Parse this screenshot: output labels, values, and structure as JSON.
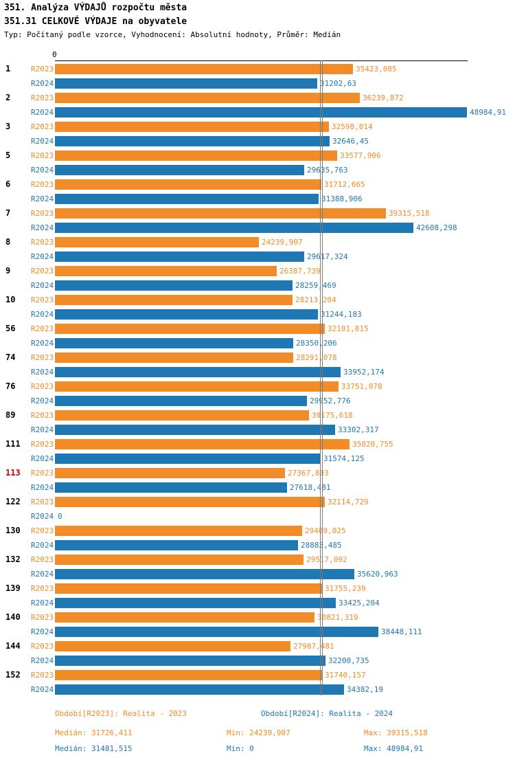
{
  "title": "351. Analýza VÝDAJŮ rozpočtu města",
  "subtitle": "351.31 CELKOVÉ VÝDAJE na obyvatele",
  "meta": "Typ: Počítaný podle vzorce, Vyhodnocení: Absolutní hodnoty, Průměr: Medián",
  "axis": {
    "origin_label": "0"
  },
  "colors": {
    "r2023": "#F28C28",
    "r2024": "#1F77B4",
    "highlight_id": "#CC0000",
    "median_line": "#7a7a7a",
    "axis": "#000000"
  },
  "chart_data": {
    "type": "bar",
    "orientation": "horizontal",
    "title": "351.31 CELKOVÉ VÝDAJE na obyvatele",
    "xlabel": "",
    "ylabel": "",
    "xlim": [
      0,
      48984.91
    ],
    "grid": false,
    "legend_position": "bottom",
    "series_names": [
      "R2023",
      "R2024"
    ],
    "medians": [
      31726.411,
      31481.515
    ],
    "rows": [
      {
        "id": "1",
        "highlight": false,
        "r2023": 35423.085,
        "r2023_label": "35423,085",
        "r2024": 31202.63,
        "r2024_label": "31202,63"
      },
      {
        "id": "2",
        "highlight": false,
        "r2023": 36239.872,
        "r2023_label": "36239,872",
        "r2024": 48984.91,
        "r2024_label": "48984,91"
      },
      {
        "id": "3",
        "highlight": false,
        "r2023": 32598.014,
        "r2023_label": "32598,014",
        "r2024": 32646.45,
        "r2024_label": "32646,45"
      },
      {
        "id": "5",
        "highlight": false,
        "r2023": 33577.906,
        "r2023_label": "33577,906",
        "r2024": 29635.763,
        "r2024_label": "29635,763"
      },
      {
        "id": "6",
        "highlight": false,
        "r2023": 31712.665,
        "r2023_label": "31712,665",
        "r2024": 31388.906,
        "r2024_label": "31388,906"
      },
      {
        "id": "7",
        "highlight": false,
        "r2023": 39315.518,
        "r2023_label": "39315,518",
        "r2024": 42608.298,
        "r2024_label": "42608,298"
      },
      {
        "id": "8",
        "highlight": false,
        "r2023": 24239.907,
        "r2023_label": "24239,907",
        "r2024": 29617.324,
        "r2024_label": "29617,324"
      },
      {
        "id": "9",
        "highlight": false,
        "r2023": 26387.739,
        "r2023_label": "26387,739",
        "r2024": 28259.469,
        "r2024_label": "28259,469"
      },
      {
        "id": "10",
        "highlight": false,
        "r2023": 28213.204,
        "r2023_label": "28213,204",
        "r2024": 31244.183,
        "r2024_label": "31244,183"
      },
      {
        "id": "56",
        "highlight": false,
        "r2023": 32101.815,
        "r2023_label": "32101,815",
        "r2024": 28350.206,
        "r2024_label": "28350,206"
      },
      {
        "id": "74",
        "highlight": false,
        "r2023": 28291.078,
        "r2023_label": "28291,078",
        "r2024": 33952.174,
        "r2024_label": "33952,174"
      },
      {
        "id": "76",
        "highlight": false,
        "r2023": 33751.078,
        "r2023_label": "33751,078",
        "r2024": 29952.776,
        "r2024_label": "29952,776"
      },
      {
        "id": "89",
        "highlight": false,
        "r2023": 30175.618,
        "r2023_label": "30175,618",
        "r2024": 33302.317,
        "r2024_label": "33302,317"
      },
      {
        "id": "111",
        "highlight": false,
        "r2023": 35020.755,
        "r2023_label": "35020,755",
        "r2024": 31574.125,
        "r2024_label": "31574,125"
      },
      {
        "id": "113",
        "highlight": true,
        "r2023": 27367.803,
        "r2023_label": "27367,803",
        "r2024": 27618.481,
        "r2024_label": "27618,481"
      },
      {
        "id": "122",
        "highlight": false,
        "r2023": 32114.729,
        "r2023_label": "32114,729",
        "r2024": 0,
        "r2024_label": "0"
      },
      {
        "id": "130",
        "highlight": false,
        "r2023": 29409.025,
        "r2023_label": "29409,025",
        "r2024": 28883.485,
        "r2024_label": "28883,485"
      },
      {
        "id": "132",
        "highlight": false,
        "r2023": 29517.092,
        "r2023_label": "29517,092",
        "r2024": 35620.963,
        "r2024_label": "35620,963"
      },
      {
        "id": "139",
        "highlight": false,
        "r2023": 31755.239,
        "r2023_label": "31755,239",
        "r2024": 33425.204,
        "r2024_label": "33425,204"
      },
      {
        "id": "140",
        "highlight": false,
        "r2023": 30821.319,
        "r2023_label": "30821,319",
        "r2024": 38448.111,
        "r2024_label": "38448,111"
      },
      {
        "id": "144",
        "highlight": false,
        "r2023": 27987.481,
        "r2023_label": "27987,481",
        "r2024": 32200.735,
        "r2024_label": "32200,735"
      },
      {
        "id": "152",
        "highlight": false,
        "r2023": 31740.157,
        "r2023_label": "31740,157",
        "r2024": 34382.19,
        "r2024_label": "34382,19"
      }
    ]
  },
  "legend": {
    "r2023": "Období[R2023]: Realita - 2023",
    "r2024": "Období[R2024]: Realita - 2024"
  },
  "stats": {
    "r2023": {
      "median": "Medián: 31726,411",
      "min": "Min: 24239,907",
      "max": "Max: 39315,518"
    },
    "r2024": {
      "median": "Medián: 31481,515",
      "min": "Min: 0",
      "max": "Max: 48984,91"
    }
  }
}
